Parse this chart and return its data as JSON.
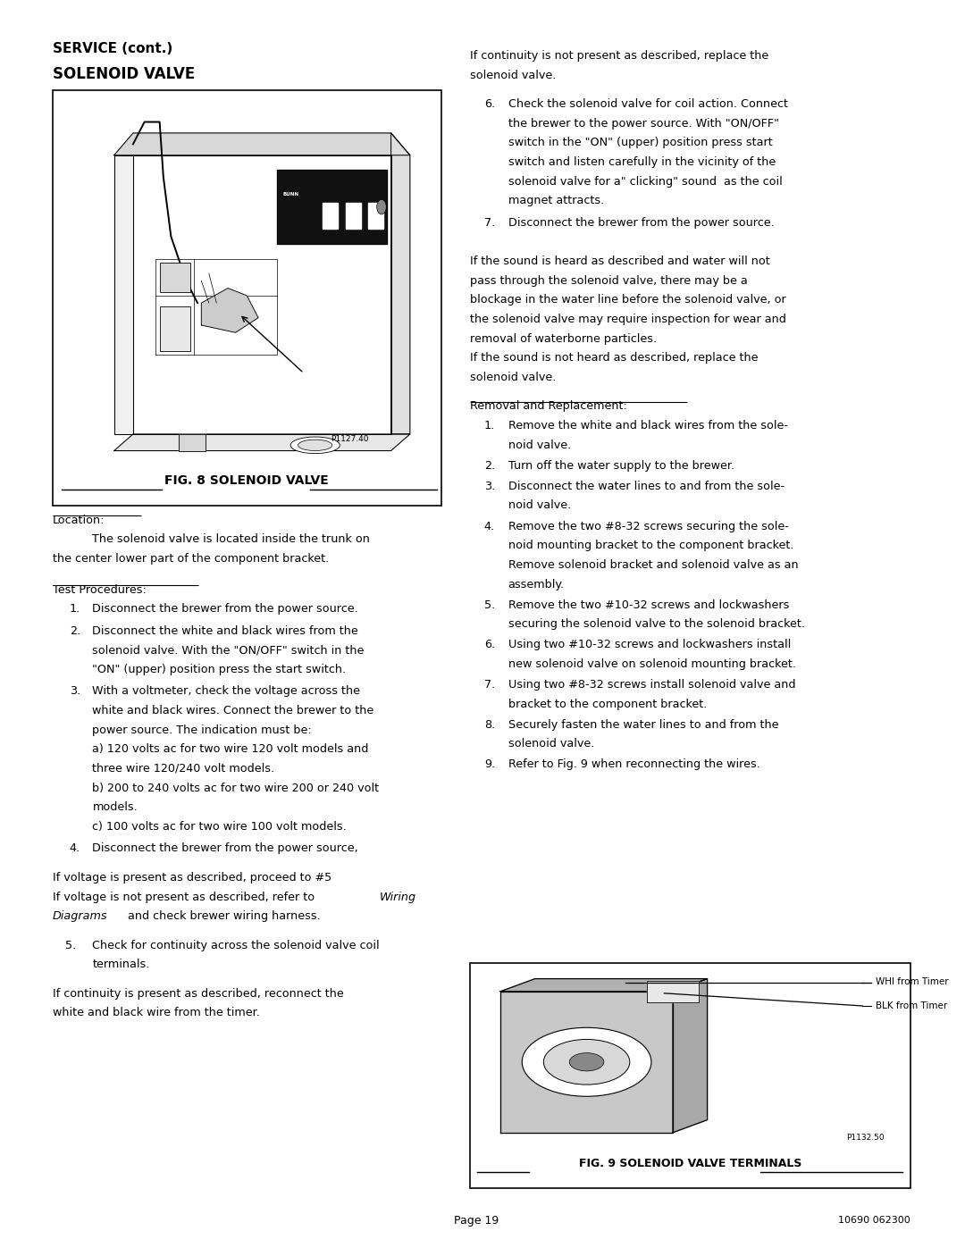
{
  "bg_color": "#ffffff",
  "text_color": "#000000",
  "page_width": 10.8,
  "page_height": 13.97,
  "title1": "SERVICE (cont.)",
  "title2": "SOLENOID VALVE",
  "fig8_label": "FIG. 8 SOLENOID VALVE",
  "fig8_part": "P1127.40",
  "fig9_label": "FIG. 9 SOLENOID VALVE TERMINALS",
  "fig9_part": "P1132.50",
  "page_num": "Page 19",
  "page_code": "10690 062300"
}
